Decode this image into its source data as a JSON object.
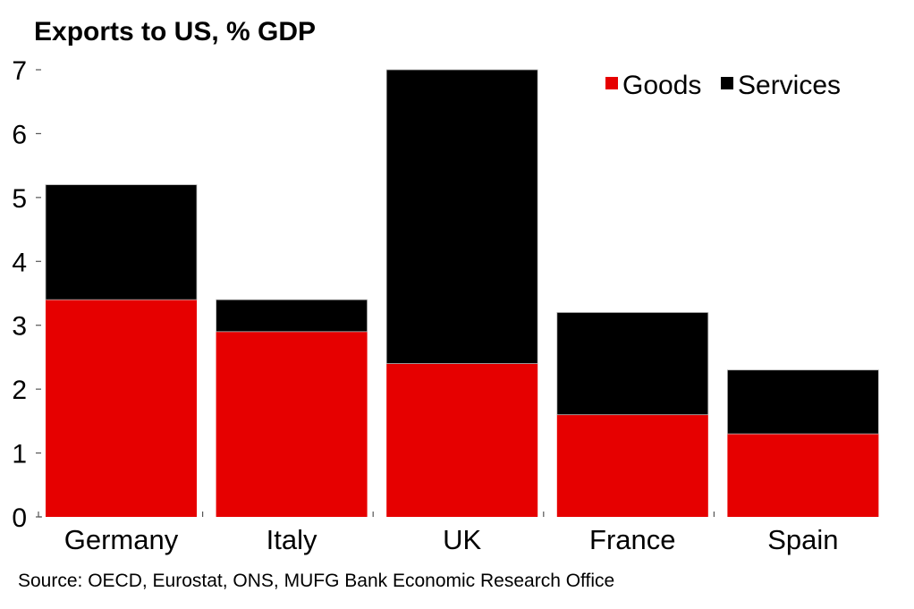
{
  "chart_data": {
    "type": "bar",
    "stacked": true,
    "title": "Exports to US, % GDP",
    "xlabel": "",
    "ylabel": "",
    "ylim": [
      0,
      7
    ],
    "yticks": [
      "0",
      "1",
      "2",
      "3",
      "4",
      "5",
      "6",
      "7"
    ],
    "categories": [
      "Germany",
      "Italy",
      "UK",
      "France",
      "Spain"
    ],
    "series": [
      {
        "name": "Goods",
        "color": "#e60000",
        "values": [
          3.4,
          2.9,
          2.4,
          1.6,
          1.3
        ]
      },
      {
        "name": "Services",
        "color": "#000000",
        "values": [
          1.8,
          0.5,
          4.6,
          1.6,
          1.0
        ]
      }
    ],
    "totals": [
      5.2,
      3.4,
      7.0,
      3.2,
      2.3
    ],
    "legend": {
      "position": "top-right",
      "entries": [
        "Goods",
        "Services"
      ]
    },
    "grid": false,
    "source": "Source: OECD, Eurostat, ONS, MUFG Bank Economic Research Office"
  }
}
